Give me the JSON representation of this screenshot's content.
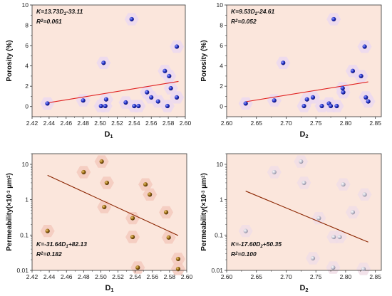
{
  "chart_data": [
    {
      "type": "scatter",
      "panel": "top-left",
      "xlabel": "D",
      "xlabel_sub": "1",
      "ylabel": "Porosity (%)",
      "xlim": [
        2.42,
        2.6
      ],
      "ylim": [
        -1,
        10
      ],
      "yscale": "linear",
      "xticks": [
        "2.42",
        "2.44",
        "2.46",
        "2.48",
        "2.50",
        "2.52",
        "2.54",
        "2.56",
        "2.58",
        "2.60"
      ],
      "yticks": [
        "0",
        "2",
        "4",
        "6",
        "8",
        "10"
      ],
      "equation": "K=13.73D₁-33.11",
      "r2": "R²=0.061",
      "fit": {
        "x": [
          2.438,
          2.592
        ],
        "y": [
          0.36,
          2.47
        ],
        "color": "#e02020"
      },
      "marker_color": "#1f2bbf",
      "points": [
        {
          "x": 2.438,
          "y": 0.3
        },
        {
          "x": 2.48,
          "y": 0.6
        },
        {
          "x": 2.501,
          "y": 0.05
        },
        {
          "x": 2.504,
          "y": 4.3
        },
        {
          "x": 2.506,
          "y": 0.05
        },
        {
          "x": 2.507,
          "y": 0.7
        },
        {
          "x": 2.53,
          "y": 0.4
        },
        {
          "x": 2.537,
          "y": 8.6
        },
        {
          "x": 2.54,
          "y": 0.05
        },
        {
          "x": 2.545,
          "y": 0.05
        },
        {
          "x": 2.555,
          "y": 1.4
        },
        {
          "x": 2.56,
          "y": 0.9
        },
        {
          "x": 2.568,
          "y": 0.5
        },
        {
          "x": 2.576,
          "y": 3.5
        },
        {
          "x": 2.579,
          "y": 0.05
        },
        {
          "x": 2.581,
          "y": 3.0
        },
        {
          "x": 2.583,
          "y": 1.8
        },
        {
          "x": 2.59,
          "y": 5.9
        },
        {
          "x": 2.59,
          "y": 0.9
        }
      ]
    },
    {
      "type": "scatter",
      "panel": "top-right",
      "xlabel": "D",
      "xlabel_sub": "2",
      "ylabel": "Porosity (%)",
      "xlim": [
        2.6,
        2.86
      ],
      "ylim": [
        -1,
        10
      ],
      "yscale": "linear",
      "xticks": [
        "2.60",
        "2.65",
        "2.70",
        "2.75",
        "2.80",
        "2.85"
      ],
      "yticks": [
        "0",
        "2",
        "4",
        "6",
        "8",
        "10"
      ],
      "equation": "K=9.53D₂-24.61",
      "r2": "R²=0.052",
      "fit": {
        "x": [
          2.632,
          2.838
        ],
        "y": [
          0.47,
          2.43
        ],
        "color": "#e02020"
      },
      "marker_color": "#1f2bbf",
      "points": [
        {
          "x": 2.632,
          "y": 0.3
        },
        {
          "x": 2.68,
          "y": 0.6
        },
        {
          "x": 2.695,
          "y": 4.3
        },
        {
          "x": 2.73,
          "y": 0.05
        },
        {
          "x": 2.735,
          "y": 0.7
        },
        {
          "x": 2.745,
          "y": 0.9
        },
        {
          "x": 2.76,
          "y": 0.05
        },
        {
          "x": 2.772,
          "y": 0.3
        },
        {
          "x": 2.775,
          "y": 0.05
        },
        {
          "x": 2.78,
          "y": 8.6
        },
        {
          "x": 2.785,
          "y": 0.05
        },
        {
          "x": 2.795,
          "y": 1.8
        },
        {
          "x": 2.796,
          "y": 1.4
        },
        {
          "x": 2.812,
          "y": 3.5
        },
        {
          "x": 2.826,
          "y": 3.0
        },
        {
          "x": 2.832,
          "y": 5.9
        },
        {
          "x": 2.834,
          "y": 0.9
        },
        {
          "x": 2.838,
          "y": 0.5
        }
      ]
    },
    {
      "type": "scatter",
      "panel": "bottom-left",
      "xlabel": "D",
      "xlabel_sub": "1",
      "ylabel": "Permeability(×10⁻³ μm²)",
      "xlim": [
        2.42,
        2.6
      ],
      "ylim": [
        0.01,
        20
      ],
      "yscale": "log",
      "xticks": [
        "2.42",
        "2.44",
        "2.46",
        "2.48",
        "2.50",
        "2.52",
        "2.54",
        "2.56",
        "2.58",
        "2.60"
      ],
      "yticks": [
        "0.01",
        "0.1",
        "1",
        "10"
      ],
      "equation": "K=-31.64D₁+82.13",
      "r2": "R²=0.182",
      "fit": {
        "x": [
          2.438,
          2.59
        ],
        "y": [
          4.9,
          0.097
        ],
        "color": "#8b2500"
      },
      "marker_color": "#9a6a12",
      "points": [
        {
          "x": 2.438,
          "y": 0.13
        },
        {
          "x": 2.48,
          "y": 6.0
        },
        {
          "x": 2.501,
          "y": 12.0
        },
        {
          "x": 2.504,
          "y": 0.62
        },
        {
          "x": 2.507,
          "y": 3.0
        },
        {
          "x": 2.537,
          "y": 0.3
        },
        {
          "x": 2.537,
          "y": 0.088
        },
        {
          "x": 2.543,
          "y": 0.012
        },
        {
          "x": 2.552,
          "y": 2.7
        },
        {
          "x": 2.557,
          "y": 1.4
        },
        {
          "x": 2.576,
          "y": 0.44
        },
        {
          "x": 2.579,
          "y": 0.085
        },
        {
          "x": 2.59,
          "y": 0.021
        },
        {
          "x": 2.59,
          "y": 0.011
        }
      ]
    },
    {
      "type": "scatter",
      "panel": "bottom-right",
      "xlabel": "D",
      "xlabel_sub": "2",
      "ylabel": "Permeability(×10⁻³ μm²)",
      "xlim": [
        2.6,
        2.86
      ],
      "ylim": [
        0.01,
        20
      ],
      "yscale": "log",
      "xticks": [
        "2.60",
        "2.65",
        "2.70",
        "2.75",
        "2.80",
        "2.85"
      ],
      "yticks": [
        "0.01",
        "0.1",
        "1",
        "10"
      ],
      "equation": "K=-17.60D₂+50.35",
      "r2": "R²=0.100",
      "fit": {
        "x": [
          2.632,
          2.838
        ],
        "y": [
          1.75,
          0.063
        ],
        "color": "#8b2500"
      },
      "marker_color": "#c4c4d2",
      "points": [
        {
          "x": 2.632,
          "y": 0.13
        },
        {
          "x": 2.68,
          "y": 6.0
        },
        {
          "x": 2.725,
          "y": 12.0
        },
        {
          "x": 2.73,
          "y": 3.0
        },
        {
          "x": 2.745,
          "y": 0.022
        },
        {
          "x": 2.755,
          "y": 0.3
        },
        {
          "x": 2.78,
          "y": 0.088
        },
        {
          "x": 2.779,
          "y": 0.012
        },
        {
          "x": 2.79,
          "y": 0.088
        },
        {
          "x": 2.796,
          "y": 2.7
        },
        {
          "x": 2.812,
          "y": 0.44
        },
        {
          "x": 2.832,
          "y": 1.4
        },
        {
          "x": 2.83,
          "y": 0.011
        }
      ]
    }
  ],
  "style": {
    "plot_bg": "#fbe6dc",
    "axis_color": "#333333"
  }
}
